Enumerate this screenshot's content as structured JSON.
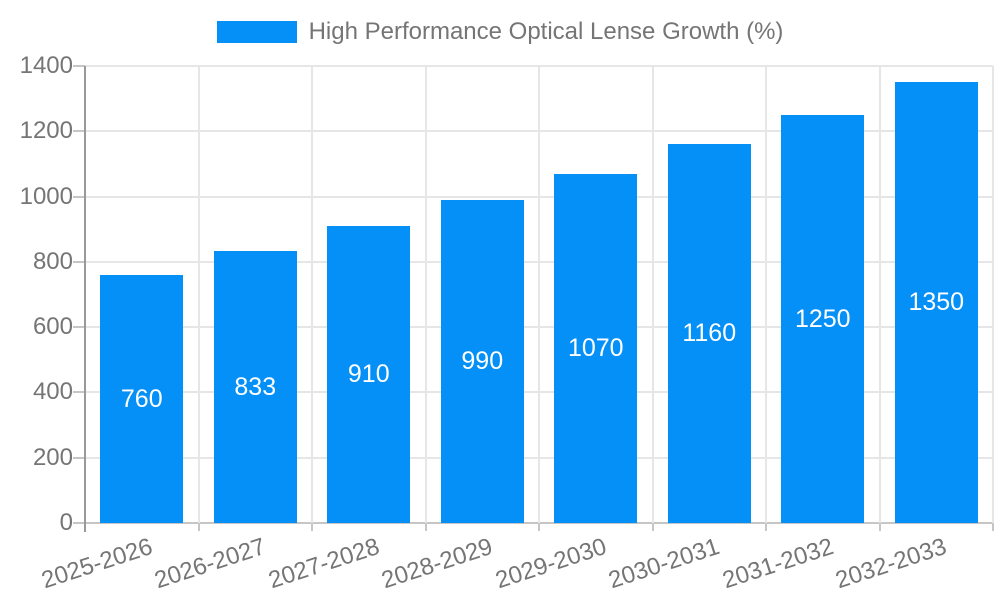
{
  "chart_data": {
    "type": "bar",
    "title": "High Performance Optical Lense Growth (%)",
    "categories": [
      "2025-2026",
      "2026-2027",
      "2027-2028",
      "2028-2029",
      "2029-2030",
      "2030-2031",
      "2031-2032",
      "2032-2033"
    ],
    "values": [
      760,
      833,
      910,
      990,
      1070,
      1160,
      1250,
      1350
    ],
    "xlabel": "",
    "ylabel": "",
    "ylim": [
      0,
      1400
    ],
    "ytick_step": 200,
    "ytick_labels": [
      "0",
      "200",
      "400",
      "600",
      "800",
      "1000",
      "1200",
      "1400"
    ],
    "grid": true,
    "legend_position": "top",
    "x_label_rotation_deg": -18,
    "bar_labels_inside": true,
    "colors": {
      "bar": "#0590f8",
      "bar_label": "#ffffff",
      "axis_text": "#757575",
      "gridline": "#e6e6e6",
      "axis_line": "#999999",
      "tick": "#c6c6c6",
      "background": "#ffffff"
    }
  }
}
